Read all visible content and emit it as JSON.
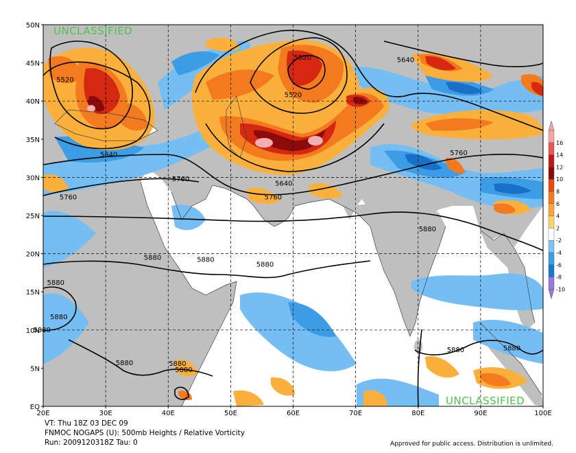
{
  "map": {
    "lat_labels": [
      "50N",
      "45N",
      "40N",
      "35N",
      "30N",
      "25N",
      "20N",
      "15N",
      "10N",
      "5N",
      "EQ"
    ],
    "lon_labels": [
      "20E",
      "30E",
      "40E",
      "50E",
      "60E",
      "70E",
      "80E",
      "90E",
      "100E"
    ],
    "height_labels": [
      {
        "text": "5520",
        "lon": 23.5,
        "lat": 42.6
      },
      {
        "text": "5520",
        "lon": 61.5,
        "lat": 45.5
      },
      {
        "text": "5520",
        "lon": 60.0,
        "lat": 40.6
      },
      {
        "text": "5640",
        "lon": 30.5,
        "lat": 32.8
      },
      {
        "text": "5640",
        "lon": 58.5,
        "lat": 29.0
      },
      {
        "text": "5640",
        "lon": 78.0,
        "lat": 45.2
      },
      {
        "text": "5760",
        "lon": 42.0,
        "lat": 29.6
      },
      {
        "text": "5760",
        "lon": 24.0,
        "lat": 27.2
      },
      {
        "text": "5760",
        "lon": 56.8,
        "lat": 27.2
      },
      {
        "text": "5760",
        "lon": 86.5,
        "lat": 33.0
      },
      {
        "text": "5880",
        "lon": 81.5,
        "lat": 23.0
      },
      {
        "text": "5880",
        "lon": 37.5,
        "lat": 19.3
      },
      {
        "text": "5880",
        "lon": 46.0,
        "lat": 19.0
      },
      {
        "text": "5880",
        "lon": 55.5,
        "lat": 18.4
      },
      {
        "text": "5880",
        "lon": 22.0,
        "lat": 16.0
      },
      {
        "text": "5880",
        "lon": 22.5,
        "lat": 11.5
      },
      {
        "text": "5880",
        "lon": 19.8,
        "lat": 9.8
      },
      {
        "text": "5880",
        "lon": 86.0,
        "lat": 7.2
      },
      {
        "text": "5880",
        "lon": 95.0,
        "lat": 7.4
      },
      {
        "text": "5880",
        "lon": 41.5,
        "lat": 5.4
      },
      {
        "text": "5880",
        "lon": 33.0,
        "lat": 5.5
      },
      {
        "text": "5880",
        "lon": 42.5,
        "lat": 4.6
      }
    ],
    "classification_top": "UNCLASSIFIED",
    "classification_bottom": "UNCLASSIFIED"
  },
  "legend": {
    "labels": [
      "16",
      "14",
      "12",
      "10",
      "8",
      "6",
      "4",
      "2",
      "-2",
      "-4",
      "-6",
      "-8",
      "-10"
    ],
    "colors": [
      "#f4a6a6",
      "#e85858",
      "#c01818",
      "#8c0a0a",
      "#e84a10",
      "#f47a20",
      "#fca43c",
      "#fcd26c",
      "#ffffff",
      "#7cc4f4",
      "#3ca0e4",
      "#1878cc",
      "#9878dc"
    ]
  },
  "colors": {
    "land": "#bfbfbf",
    "ocean": "#ffffff",
    "pos_light": "#fcb03c",
    "pos_orange": "#f47a20",
    "pos_red": "#d42810",
    "pos_dark": "#8c0a0a",
    "pos_pink": "#f4b0b0",
    "neg_light": "#74bef4",
    "neg_mid": "#3c9ce4",
    "neg_dark": "#1870c8",
    "classification": "#4ec24e"
  },
  "footer": {
    "line1": "VT: Thu 18Z 03 DEC 09",
    "line2": "FNMOC NOGAPS (U): 500mb Heights / Relative Vorticity",
    "line3": "Run: 2009120318Z Tau: 0",
    "note": "Approved for public access. Distribution is unlimited."
  }
}
